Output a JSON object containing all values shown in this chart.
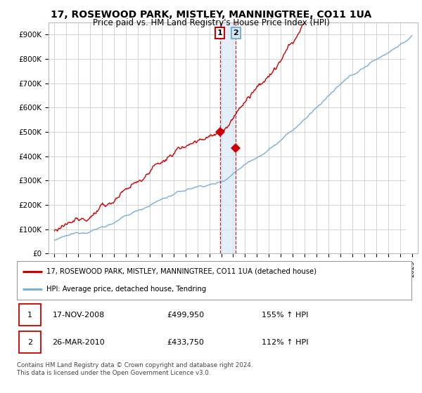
{
  "title": "17, ROSEWOOD PARK, MISTLEY, MANNINGTREE, CO11 1UA",
  "subtitle": "Price paid vs. HM Land Registry's House Price Index (HPI)",
  "title_fontsize": 10,
  "subtitle_fontsize": 8.5,
  "ylim": [
    0,
    950000
  ],
  "yticks": [
    0,
    100000,
    200000,
    300000,
    400000,
    500000,
    600000,
    700000,
    800000,
    900000
  ],
  "ytick_labels": [
    "£0",
    "£100K",
    "£200K",
    "£300K",
    "£400K",
    "£500K",
    "£600K",
    "£700K",
    "£800K",
    "£900K"
  ],
  "hpi_color": "#7bafd4",
  "price_color": "#cc0000",
  "buy1_year": 2008.88,
  "buy1_price": 499950,
  "buy2_year": 2010.23,
  "buy2_price": 433750,
  "annotation1_label": "1",
  "annotation2_label": "2",
  "legend_line1": "17, ROSEWOOD PARK, MISTLEY, MANNINGTREE, CO11 1UA (detached house)",
  "legend_line2": "HPI: Average price, detached house, Tendring",
  "table_row1": [
    "1",
    "17-NOV-2008",
    "£499,950",
    "155% ↑ HPI"
  ],
  "table_row2": [
    "2",
    "26-MAR-2010",
    "£433,750",
    "112% ↑ HPI"
  ],
  "footnote": "Contains HM Land Registry data © Crown copyright and database right 2024.\nThis data is licensed under the Open Government Licence v3.0.",
  "background_color": "#ffffff",
  "grid_color": "#cccccc",
  "shade_color": "#d8eaf8"
}
